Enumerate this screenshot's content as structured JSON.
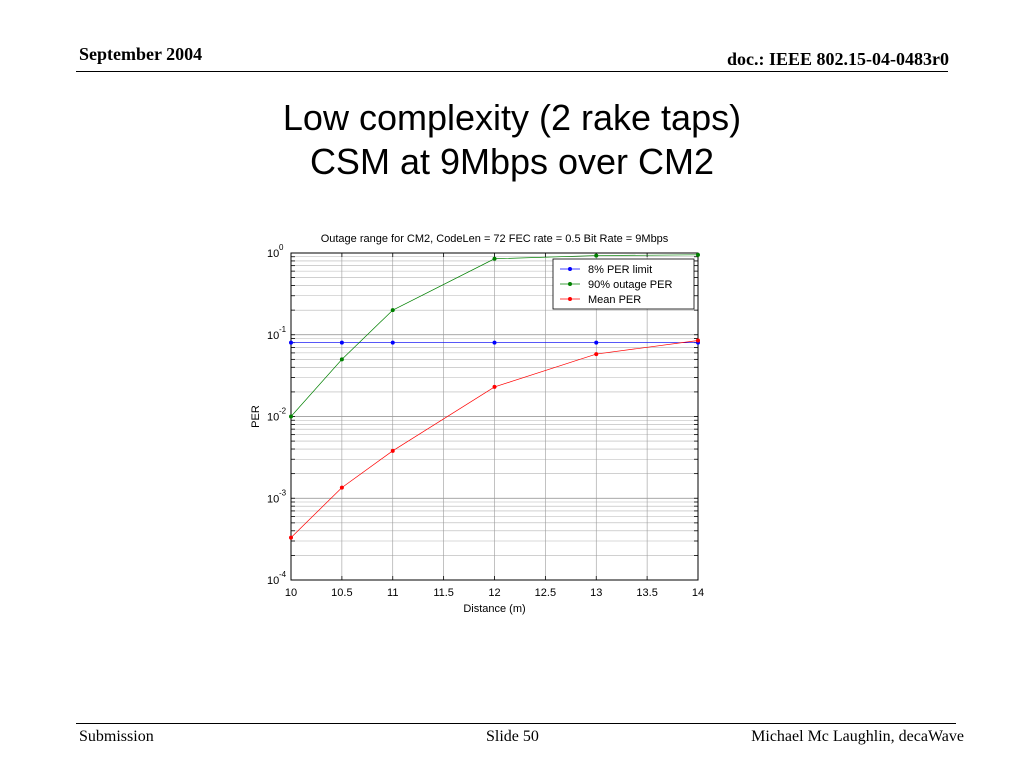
{
  "header": {
    "date": "September 2004",
    "doc_id": "doc.: IEEE 802.15-04-0483r0"
  },
  "slide": {
    "title_line1": "Low complexity (2 rake taps)",
    "title_line2": "CSM at 9Mbps over CM2"
  },
  "footer": {
    "left": "Submission",
    "center": "Slide 50",
    "right": "Michael Mc Laughlin, decaWave"
  },
  "chart_data": {
    "type": "line",
    "title": "Outage range for CM2, CodeLen = 72 FEC rate = 0.5 Bit Rate = 9Mbps",
    "xlabel": "Distance (m)",
    "ylabel": "PER",
    "xlim": [
      10,
      14
    ],
    "ylim": [
      0.0001,
      1
    ],
    "yscale": "log",
    "grid": true,
    "legend_position": "top-right",
    "x_ticks": [
      "10",
      "10.5",
      "11",
      "11.5",
      "12",
      "12.5",
      "13",
      "13.5",
      "14"
    ],
    "y_ticks": [
      {
        "base": "10",
        "exp": "0"
      },
      {
        "base": "10",
        "exp": "-1"
      },
      {
        "base": "10",
        "exp": "-2"
      },
      {
        "base": "10",
        "exp": "-3"
      },
      {
        "base": "10",
        "exp": "-4"
      }
    ],
    "series": [
      {
        "name": "8% PER limit",
        "color": "#0000ff",
        "x": [
          10,
          10.5,
          11,
          12,
          13,
          14
        ],
        "y": [
          0.08,
          0.08,
          0.08,
          0.08,
          0.08,
          0.08
        ]
      },
      {
        "name": "90% outage PER",
        "color": "#008000",
        "x": [
          10,
          10.5,
          11,
          12,
          13,
          14
        ],
        "y": [
          0.01,
          0.05,
          0.2,
          0.85,
          0.93,
          0.95
        ]
      },
      {
        "name": "Mean PER",
        "color": "#ff0000",
        "x": [
          10,
          10.5,
          11,
          12,
          13,
          14
        ],
        "y": [
          0.00033,
          0.00135,
          0.0038,
          0.023,
          0.058,
          0.085
        ]
      }
    ]
  }
}
